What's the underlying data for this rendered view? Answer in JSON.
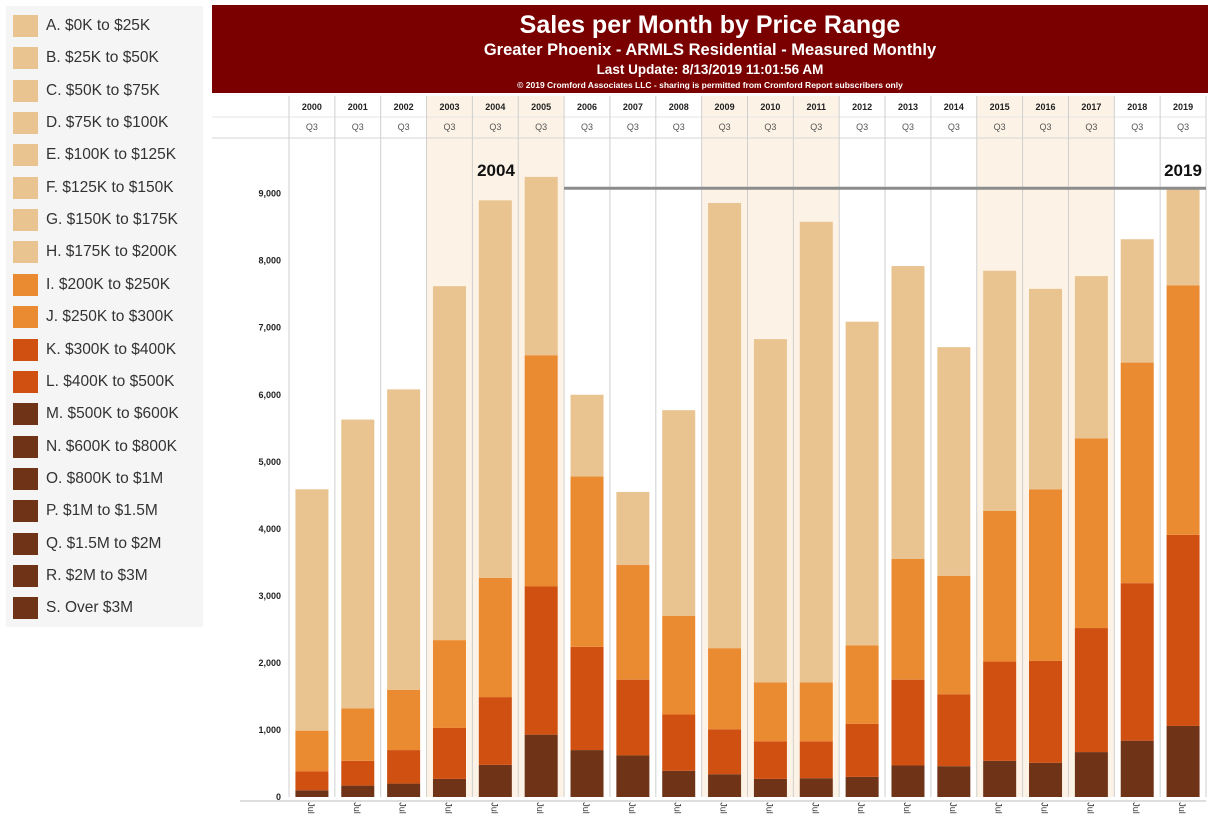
{
  "legend": [
    {
      "label": "A. $0K to $25K",
      "color": "#e9c490"
    },
    {
      "label": "B. $25K to $50K",
      "color": "#e9c490"
    },
    {
      "label": "C. $50K to $75K",
      "color": "#e9c490"
    },
    {
      "label": "D. $75K to $100K",
      "color": "#e9c490"
    },
    {
      "label": "E. $100K to $125K",
      "color": "#e9c490"
    },
    {
      "label": "F. $125K to $150K",
      "color": "#e9c490"
    },
    {
      "label": "G. $150K to $175K",
      "color": "#e9c490"
    },
    {
      "label": "H. $175K to $200K",
      "color": "#e9c490"
    },
    {
      "label": "I. $200K to $250K",
      "color": "#ea8a31"
    },
    {
      "label": "J. $250K to $300K",
      "color": "#ea8a31"
    },
    {
      "label": "K. $300K to $400K",
      "color": "#d05012"
    },
    {
      "label": "L. $400K to $500K",
      "color": "#d05012"
    },
    {
      "label": "M. $500K to $600K",
      "color": "#6f3418"
    },
    {
      "label": "N. $600K to $800K",
      "color": "#6f3418"
    },
    {
      "label": "O. $800K to $1M",
      "color": "#6f3418"
    },
    {
      "label": "P. $1M to $1.5M",
      "color": "#6f3418"
    },
    {
      "label": "Q. $1.5M to $2M",
      "color": "#6f3418"
    },
    {
      "label": "R. $2M to $3M",
      "color": "#6f3418"
    },
    {
      "label": "S. Over $3M",
      "color": "#6f3418"
    }
  ],
  "chart_data": {
    "type": "bar",
    "stacked": true,
    "title": "Sales per Month by Price Range",
    "subtitle": "Greater Phoenix - ARMLS Residential - Measured Monthly",
    "last_update": "Last Update: 8/13/2019 11:01:56 AM",
    "copyright": "© 2019 Cromford Associates LLC - sharing is permitted from Cromford Report subscribers only",
    "title_bg_color": "#7a0000",
    "categories": [
      "2000",
      "2001",
      "2002",
      "2003",
      "2004",
      "2005",
      "2006",
      "2007",
      "2008",
      "2009",
      "2010",
      "2011",
      "2012",
      "2013",
      "2014",
      "2015",
      "2016",
      "2017",
      "2018",
      "2019"
    ],
    "quarter_label": "Q3",
    "bottom_tick_label": "Jul",
    "highlighted_years": [
      "2003",
      "2004",
      "2005",
      "2009",
      "2010",
      "2011",
      "2015",
      "2016",
      "2017"
    ],
    "highlight_color": "#fcf3e6",
    "ylim": [
      0,
      9800
    ],
    "yticks": [
      0,
      1000,
      2000,
      3000,
      4000,
      5000,
      6000,
      7000,
      8000,
      9000
    ],
    "ytick_labels": [
      "0",
      "1,000",
      "2,000",
      "3,000",
      "4,000",
      "5,000",
      "6,000",
      "7,000",
      "8,000",
      "9,000"
    ],
    "series": [
      {
        "color": "#6f3418",
        "values": [
          100,
          170,
          200,
          270,
          480,
          930,
          700,
          620,
          390,
          340,
          270,
          280,
          300,
          470,
          460,
          540,
          510,
          670,
          840,
          1060
        ]
      },
      {
        "color": "#d05012",
        "values": [
          280,
          370,
          500,
          760,
          1010,
          2210,
          1540,
          1130,
          840,
          670,
          560,
          550,
          790,
          1280,
          1070,
          1480,
          1520,
          1850,
          2350,
          2850
        ]
      },
      {
        "color": "#ea8a31",
        "values": [
          610,
          780,
          900,
          1310,
          1780,
          3450,
          2540,
          1710,
          1470,
          1210,
          880,
          880,
          1170,
          1800,
          1770,
          2250,
          2560,
          2830,
          3290,
          3720
        ]
      },
      {
        "color": "#e9c490",
        "values": [
          3600,
          4310,
          4480,
          5280,
          5630,
          2660,
          1220,
          1090,
          3070,
          6640,
          5120,
          6870,
          4830,
          4370,
          3410,
          3580,
          2990,
          2420,
          1840,
          1470
        ]
      }
    ],
    "annotation": {
      "start_label": "2004",
      "end_label": "2019",
      "level": 9080,
      "from": "2006",
      "to": "2019"
    }
  }
}
